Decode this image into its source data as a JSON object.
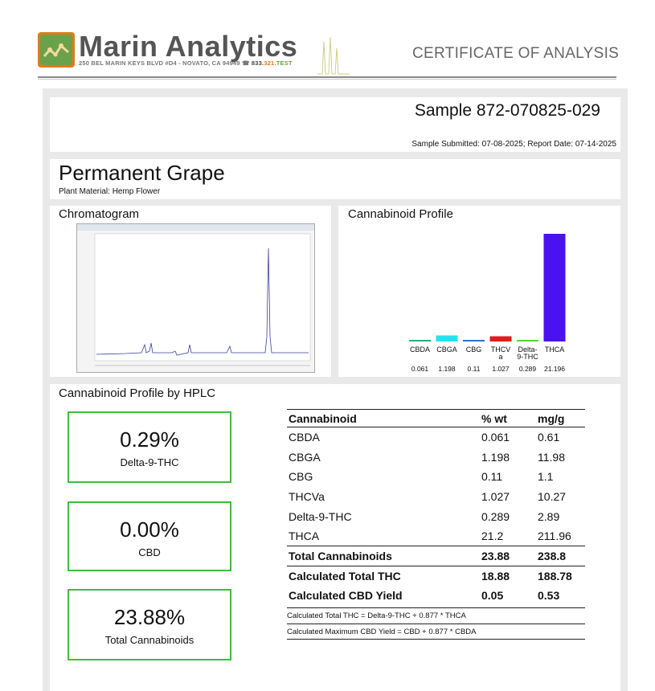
{
  "header": {
    "brand": "Marin Analytics",
    "address": "250 BEL MARIN KEYS BLVD #D4 - NOVATO, CA 94949",
    "phone_prefix": "833.",
    "phone_mid": "321",
    "phone_suffix": ".TEST",
    "title": "CERTIFICATE OF ANALYSIS"
  },
  "sample": {
    "id": "Sample 872-070825-029",
    "dates": "Sample Submitted: 07-08-2025; Report Date: 07-14-2025"
  },
  "product": {
    "name": "Permanent Grape",
    "plant_material": "Plant Material: Hemp Flower"
  },
  "chromatogram": {
    "title": "Chromatogram"
  },
  "profile": {
    "title": "Cannabinoid Profile"
  },
  "chart_data": {
    "type": "bar",
    "categories": [
      "CBDA",
      "CBGA",
      "CBG",
      "THCVa",
      "Delta-9-THC",
      "THCA"
    ],
    "category_labels": [
      [
        "CBDA"
      ],
      [
        "CBGA"
      ],
      [
        "CBG"
      ],
      [
        "THCV",
        "a"
      ],
      [
        "Delta-",
        "9-THC"
      ],
      [
        "THCA"
      ]
    ],
    "values": [
      0.061,
      1.198,
      0.11,
      1.027,
      0.289,
      21.196
    ],
    "value_labels": [
      "0.061",
      "1.198",
      "0.11",
      "1.027",
      "0.289",
      "21.196"
    ],
    "colors": [
      "#1fb08a",
      "#22e3f0",
      "#2f6fd6",
      "#e01d1d",
      "#57d43a",
      "#4a12f2"
    ],
    "ylim": [
      0,
      21.196
    ],
    "title": "",
    "xlabel": "",
    "ylabel": ""
  },
  "hplc": {
    "title": "Cannabinoid Profile by HPLC",
    "kpis": [
      {
        "value": "0.29%",
        "label": "Delta-9-THC"
      },
      {
        "value": "0.00%",
        "label": "CBD"
      },
      {
        "value": "23.88%",
        "label": "Total Cannabinoids"
      }
    ],
    "columns": [
      "Cannabinoid",
      "% wt",
      "mg/g"
    ],
    "rows": [
      [
        "CBDA",
        "0.061",
        "0.61"
      ],
      [
        "CBGA",
        "1.198",
        "11.98"
      ],
      [
        "CBG",
        "0.11",
        "1.1"
      ],
      [
        "THCVa",
        "1.027",
        "10.27"
      ],
      [
        "Delta-9-THC",
        "0.289",
        "2.89"
      ],
      [
        "THCA",
        "21.2",
        "211.96"
      ]
    ],
    "totals": [
      [
        "Total Cannabinoids",
        "23.88",
        "238.8"
      ],
      [
        "Calculated Total THC",
        "18.88",
        "188.78"
      ],
      [
        "Calculated CBD Yield",
        "0.05",
        "0.53"
      ]
    ],
    "formula_thc": "Calculated Total THC = Delta-9-THC + 0.877 * THCA",
    "formula_cbd": "Calculated Maximum CBD Yield = CBD + 0.877 * CBDA"
  }
}
